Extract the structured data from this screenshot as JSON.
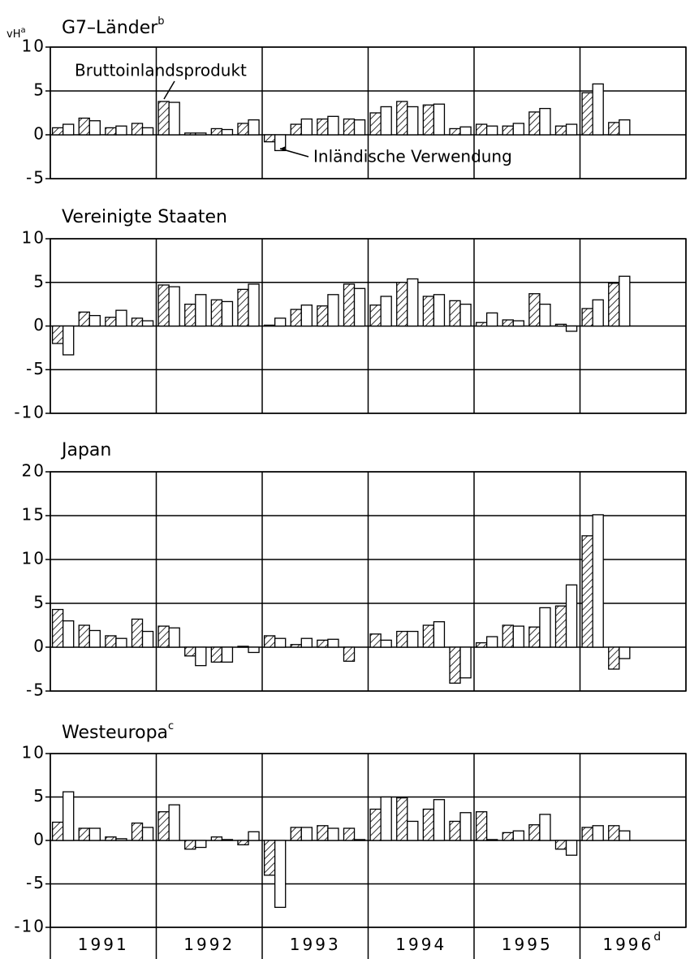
{
  "unit_label": "vH",
  "unit_note": "a",
  "chart_data": [
    {
      "type": "bar",
      "title": "G7–Länder",
      "title_note": "b",
      "categories": [
        null,
        null,
        null,
        null,
        null,
        null,
        null,
        null,
        null,
        null,
        null,
        null,
        null,
        null,
        null,
        null,
        null,
        null,
        null,
        null,
        null,
        null,
        null,
        null
      ],
      "series": [
        {
          "name": "Bruttoinlandsprodukt",
          "color": "#000000",
          "hatch": true,
          "values": [
            0.8,
            1.9,
            0.8,
            1.3,
            3.8,
            0.2,
            0.7,
            1.3,
            -0.8,
            1.2,
            1.8,
            1.8,
            2.5,
            3.8,
            3.4,
            0.7,
            1.2,
            1.0,
            2.6,
            1.0,
            4.8,
            1.4,
            null,
            null
          ]
        },
        {
          "name": "Inländische Verwendung",
          "color": "#000000",
          "hatch": false,
          "values": [
            1.2,
            1.6,
            1.0,
            0.8,
            3.7,
            0.2,
            0.6,
            1.7,
            -1.8,
            1.8,
            2.1,
            1.7,
            3.2,
            3.2,
            3.5,
            0.9,
            1.0,
            1.3,
            3.0,
            1.2,
            5.8,
            1.7,
            null,
            null
          ]
        }
      ],
      "ylim": [
        -5,
        10
      ],
      "yticks": [
        -5,
        0,
        5,
        10
      ],
      "grid": true
    },
    {
      "type": "bar",
      "title": "Vereinigte Staaten",
      "categories": [
        null,
        null,
        null,
        null,
        null,
        null,
        null,
        null,
        null,
        null,
        null,
        null,
        null,
        null,
        null,
        null,
        null,
        null,
        null,
        null,
        null,
        null,
        null,
        null
      ],
      "series": [
        {
          "color": "#000000",
          "hatch": true,
          "values": [
            -2.0,
            1.6,
            1.0,
            0.9,
            4.7,
            2.5,
            3.0,
            4.2,
            0.1,
            1.9,
            2.3,
            4.8,
            2.4,
            5.0,
            3.4,
            2.9,
            0.4,
            0.7,
            3.7,
            0.2,
            2.0,
            4.9,
            null,
            null
          ]
        },
        {
          "color": "#000000",
          "hatch": false,
          "values": [
            -3.3,
            1.2,
            1.8,
            0.6,
            4.5,
            3.6,
            2.8,
            4.8,
            0.9,
            2.4,
            3.6,
            4.3,
            3.4,
            5.4,
            3.6,
            2.5,
            1.5,
            0.6,
            2.5,
            -0.6,
            3.0,
            5.7,
            null,
            null
          ]
        }
      ],
      "ylim": [
        -10,
        10
      ],
      "yticks": [
        -10,
        -5,
        0,
        5,
        10
      ],
      "grid": true
    },
    {
      "type": "bar",
      "title": "Japan",
      "categories": [
        null,
        null,
        null,
        null,
        null,
        null,
        null,
        null,
        null,
        null,
        null,
        null,
        null,
        null,
        null,
        null,
        null,
        null,
        null,
        null,
        null,
        null,
        null,
        null
      ],
      "series": [
        {
          "color": "#000000",
          "hatch": true,
          "values": [
            4.3,
            2.5,
            1.3,
            3.2,
            2.4,
            -1.0,
            -1.7,
            0.1,
            1.3,
            0.3,
            0.8,
            -1.6,
            1.5,
            1.8,
            2.5,
            -4.1,
            0.5,
            2.5,
            2.3,
            4.7,
            12.7,
            -2.5,
            null,
            null
          ]
        },
        {
          "color": "#000000",
          "hatch": false,
          "values": [
            3.0,
            1.9,
            1.0,
            1.8,
            2.2,
            -2.1,
            -1.7,
            -0.6,
            1.0,
            1.0,
            0.9,
            0.0,
            0.8,
            1.8,
            2.9,
            -3.5,
            1.2,
            2.4,
            4.5,
            7.1,
            15.1,
            -1.3,
            null,
            null
          ]
        }
      ],
      "ylim": [
        -5,
        20
      ],
      "yticks": [
        -5,
        0,
        5,
        10,
        15,
        20
      ],
      "grid": true
    },
    {
      "type": "bar",
      "title": "Westeuropa",
      "title_note": "c",
      "categories": [
        null,
        null,
        null,
        null,
        null,
        null,
        null,
        null,
        null,
        null,
        null,
        null,
        null,
        null,
        null,
        null,
        null,
        null,
        null,
        null,
        null,
        null,
        null,
        null
      ],
      "series": [
        {
          "color": "#000000",
          "hatch": true,
          "values": [
            2.1,
            1.4,
            0.4,
            2.0,
            3.3,
            -1.0,
            0.4,
            -0.5,
            -4.0,
            1.5,
            1.7,
            1.4,
            3.6,
            4.9,
            3.6,
            2.2,
            3.3,
            0.9,
            1.8,
            -1.0,
            1.5,
            1.7,
            null,
            null
          ]
        },
        {
          "color": "#000000",
          "hatch": false,
          "values": [
            5.6,
            1.4,
            0.2,
            1.5,
            4.1,
            -0.8,
            0.1,
            1.0,
            -7.7,
            1.5,
            1.4,
            0.1,
            5.0,
            2.2,
            4.7,
            3.2,
            0.1,
            1.1,
            3.0,
            -1.7,
            1.7,
            1.1,
            null,
            null
          ]
        }
      ],
      "ylim": [
        -10,
        10
      ],
      "yticks": [
        -10,
        -5,
        0,
        5,
        10
      ],
      "grid": true,
      "groups": [
        "1991",
        "1992",
        "1993",
        "1994",
        "1995",
        "1996"
      ],
      "group_note": "d"
    }
  ]
}
